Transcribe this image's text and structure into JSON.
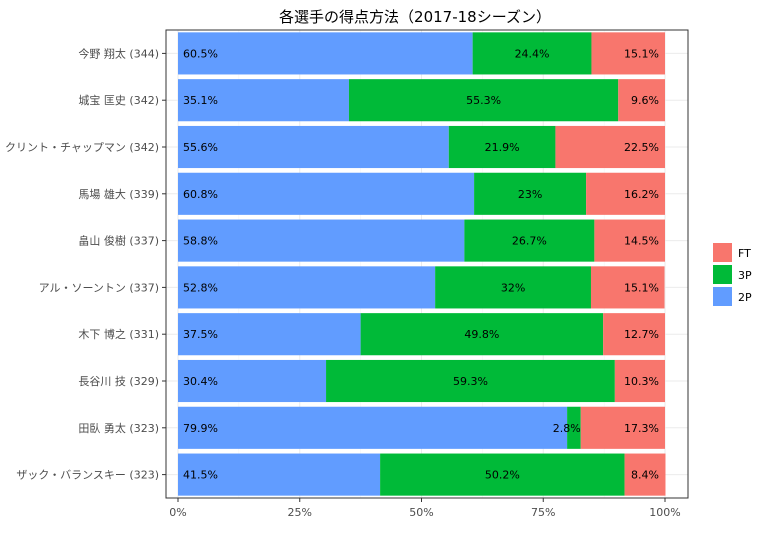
{
  "chart_data": {
    "type": "bar",
    "orientation": "horizontal",
    "stacked": true,
    "title": "各選手の得点方法（2017-18シーズン）",
    "xlabel": "",
    "ylabel": "",
    "xlim": [
      0,
      100
    ],
    "x_ticks": [
      "0%",
      "25%",
      "50%",
      "75%",
      "100%"
    ],
    "grid": true,
    "legend_position": "right",
    "categories": [
      "今野 翔太 (344)",
      "城宝 匡史 (342)",
      "クリント・チャップマン (342)",
      "馬場 雄大 (339)",
      "畠山 俊樹 (337)",
      "アル・ソーントン (337)",
      "木下 博之 (331)",
      "長谷川 技 (329)",
      "田臥 勇太 (323)",
      "ザック・バランスキー (323)"
    ],
    "series": [
      {
        "name": "2P",
        "color": "#619cff",
        "values": [
          60.5,
          35.1,
          55.6,
          60.8,
          58.8,
          52.8,
          37.5,
          30.4,
          79.9,
          41.5
        ],
        "labels": [
          "60.5%",
          "35.1%",
          "55.6%",
          "60.8%",
          "58.8%",
          "52.8%",
          "37.5%",
          "30.4%",
          "79.9%",
          "41.5%"
        ]
      },
      {
        "name": "3P",
        "color": "#00ba38",
        "values": [
          24.4,
          55.3,
          21.9,
          23,
          26.7,
          32,
          49.8,
          59.3,
          2.8,
          50.2
        ],
        "labels": [
          "24.4%",
          "55.3%",
          "21.9%",
          "23%",
          "26.7%",
          "32%",
          "49.8%",
          "59.3%",
          "2.8%",
          "50.2%"
        ]
      },
      {
        "name": "FT",
        "color": "#f8766d",
        "values": [
          15.1,
          9.6,
          22.5,
          16.2,
          14.5,
          15.1,
          12.7,
          10.3,
          17.3,
          8.4
        ],
        "labels": [
          "15.1%",
          "9.6%",
          "22.5%",
          "16.2%",
          "14.5%",
          "15.1%",
          "12.7%",
          "10.3%",
          "17.3%",
          "8.4%"
        ]
      }
    ],
    "legend_order": [
      "FT",
      "3P",
      "2P"
    ]
  }
}
